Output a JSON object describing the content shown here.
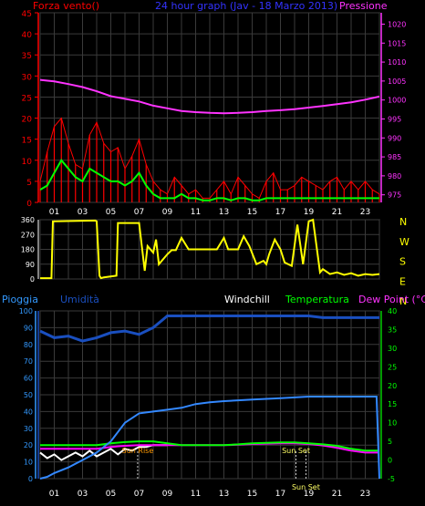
{
  "chart_data": [
    {
      "type": "line",
      "title": "24 hour graph (Jav - 18 Marzo 2013)",
      "left_label": "Forza vento()",
      "right_label": "Pressione",
      "x_ticks": [
        "01",
        "03",
        "05",
        "07",
        "09",
        "11",
        "13",
        "15",
        "17",
        "19",
        "21",
        "23"
      ],
      "x_range": [
        0,
        24
      ],
      "y_left": {
        "ticks": [
          0,
          5,
          10,
          15,
          20,
          25,
          30,
          35,
          40,
          45
        ],
        "range": [
          0,
          45
        ]
      },
      "y_right": {
        "ticks": [
          975,
          980,
          985,
          990,
          995,
          1000,
          1005,
          1010,
          1015,
          1020
        ],
        "range": [
          973,
          1023
        ]
      },
      "grid": true,
      "series": [
        {
          "axis": "right",
          "color": "#ff33ff",
          "x": [
            0,
            1,
            2,
            3,
            4,
            5,
            6,
            7,
            8,
            9,
            10,
            11,
            12,
            13,
            14,
            15,
            16,
            17,
            18,
            19,
            20,
            21,
            22,
            23,
            24
          ],
          "values": [
            1005.3,
            1004.9,
            1004.2,
            1003.4,
            1002.3,
            1001,
            1000.3,
            999.6,
            998.5,
            997.8,
            997.1,
            996.8,
            996.6,
            996.5,
            996.6,
            996.8,
            997.1,
            997.3,
            997.6,
            998,
            998.4,
            998.9,
            999.4,
            1000.1,
            1000.9
          ]
        },
        {
          "axis": "left",
          "color": "#ff0000",
          "x": [
            0,
            0.5,
            1,
            1.5,
            2,
            2.5,
            3,
            3.5,
            4,
            4.5,
            5,
            5.5,
            6,
            6.5,
            7,
            7.5,
            8,
            8.5,
            9,
            9.5,
            10,
            10.5,
            11,
            11.5,
            12,
            12.5,
            13,
            13.5,
            14,
            14.5,
            15,
            15.5,
            16,
            16.5,
            17,
            17.5,
            18,
            18.5,
            19,
            19.5,
            20,
            20.5,
            21,
            21.5,
            22,
            22.5,
            23,
            23.5,
            24
          ],
          "values": [
            5,
            12,
            18,
            20,
            14,
            9,
            8,
            16,
            19,
            14,
            12,
            13,
            8,
            11,
            15,
            9,
            5,
            3,
            2,
            6,
            4,
            2,
            3,
            1,
            1,
            3,
            5,
            2,
            6,
            4,
            2,
            1,
            5,
            7,
            3,
            3,
            4,
            6,
            5,
            4,
            3,
            5,
            6,
            3,
            5,
            3,
            5,
            3,
            2
          ]
        },
        {
          "axis": "left",
          "color": "#00ff00",
          "x": [
            0,
            0.5,
            1,
            1.5,
            2,
            2.5,
            3,
            3.5,
            4,
            4.5,
            5,
            5.5,
            6,
            6.5,
            7,
            7.5,
            8,
            8.5,
            9,
            9.5,
            10,
            10.5,
            11,
            11.5,
            12,
            12.5,
            13,
            13.5,
            14,
            14.5,
            15,
            15.5,
            16,
            16.5,
            17,
            17.5,
            18,
            18.5,
            19,
            19.5,
            20,
            20.5,
            21,
            21.5,
            22,
            22.5,
            23,
            23.5,
            24
          ],
          "values": [
            3,
            4,
            7,
            10,
            8,
            6,
            5,
            8,
            7,
            6,
            5,
            5,
            4,
            5,
            7,
            4,
            2,
            1,
            1,
            1,
            2,
            1,
            1,
            0.5,
            0.5,
            1,
            1,
            0.5,
            1,
            1,
            0.5,
            0.5,
            1,
            1,
            1,
            1,
            1,
            1,
            1,
            1,
            1,
            1,
            1,
            1,
            1,
            1,
            1,
            1,
            1
          ]
        }
      ]
    },
    {
      "type": "line",
      "y_left": {
        "ticks": [
          0,
          90,
          180,
          270,
          360
        ],
        "range": [
          0,
          360
        ]
      },
      "right_labels": [
        "N",
        "W",
        "S",
        "E",
        "N"
      ],
      "x_range": [
        0,
        24
      ],
      "grid": true,
      "series": [
        {
          "color": "#ffff00",
          "x": [
            0,
            0.8,
            0.9,
            3.9,
            4,
            4.2,
            4.3,
            4.5,
            5.4,
            5.5,
            6.9,
            7,
            7.4,
            7.6,
            8,
            8.2,
            8.4,
            9,
            9.3,
            9.6,
            10,
            10.5,
            11,
            11.4,
            12,
            12.5,
            13,
            13.3,
            13.8,
            14,
            14.4,
            14.8,
            15.3,
            15.8,
            16,
            16.2,
            16.6,
            17,
            17.3,
            17.8,
            18.2,
            18.6,
            19,
            19.3,
            19.8,
            20,
            20.5,
            21,
            21.5,
            22,
            22.5,
            23,
            23.5,
            24
          ],
          "values": [
            5,
            5,
            350,
            355,
            350,
            20,
            5,
            10,
            20,
            340,
            340,
            340,
            50,
            200,
            160,
            240,
            90,
            150,
            175,
            175,
            250,
            180,
            180,
            180,
            180,
            180,
            250,
            180,
            180,
            180,
            260,
            200,
            90,
            110,
            90,
            150,
            240,
            180,
            100,
            80,
            330,
            90,
            350,
            360,
            40,
            60,
            30,
            40,
            25,
            35,
            20,
            30,
            25,
            30
          ]
        }
      ]
    },
    {
      "type": "line",
      "labels": [
        "Pioggia",
        "Umidità",
        "Windchill",
        "Temperatura",
        "Dew Point (°C)"
      ],
      "x_ticks": [
        "01",
        "03",
        "05",
        "07",
        "09",
        "11",
        "13",
        "15",
        "17",
        "19",
        "21",
        "23"
      ],
      "x_range": [
        0,
        24
      ],
      "y_left": {
        "ticks": [
          0,
          10,
          20,
          30,
          40,
          50,
          60,
          70,
          80,
          90,
          100
        ],
        "range": [
          0,
          100
        ]
      },
      "y_right": {
        "ticks": [
          -5,
          0,
          5,
          10,
          15,
          20,
          25,
          30,
          35,
          40
        ],
        "range": [
          -5,
          40
        ]
      },
      "annotations": [
        {
          "text": "Sun Rise",
          "x": 6.9
        },
        {
          "text": "Sun Set",
          "x": 18.1
        },
        {
          "text": "Sun Set",
          "x": 18.8
        }
      ],
      "grid": true,
      "series": [
        {
          "name": "Pioggia",
          "axis": "right",
          "color": "#3388ff",
          "x": [
            0,
            0.5,
            1,
            2,
            3,
            4,
            5,
            6,
            7,
            8,
            9,
            10,
            11,
            12,
            13,
            14,
            15,
            16,
            17,
            18,
            19,
            20,
            21,
            22,
            23,
            23.8,
            24
          ],
          "values": [
            -5,
            -4.5,
            -3.5,
            -2,
            0,
            2,
            5,
            10,
            12.5,
            13,
            13.5,
            14,
            15,
            15.5,
            15.8,
            16,
            16.2,
            16.4,
            16.6,
            16.8,
            17,
            17,
            17,
            17,
            17,
            17,
            -5
          ]
        },
        {
          "name": "Umidità",
          "axis": "left",
          "color": "#1a4fbf",
          "x": [
            0,
            1,
            2,
            3,
            4,
            5,
            6,
            7,
            8,
            9,
            10,
            11,
            12,
            13,
            14,
            15,
            16,
            17,
            18,
            19,
            20,
            21,
            22,
            23,
            24
          ],
          "values": [
            88,
            84,
            85,
            82,
            84,
            87,
            88,
            86,
            90,
            97,
            97,
            97,
            97,
            97,
            97,
            97,
            97,
            97,
            97,
            97,
            96,
            96,
            96,
            96,
            96
          ]
        },
        {
          "name": "Temperatura",
          "axis": "right",
          "color": "#00ff00",
          "x": [
            0,
            1,
            2,
            3,
            4,
            5,
            6,
            7,
            8,
            9,
            10,
            11,
            12,
            13,
            14,
            15,
            16,
            17,
            18,
            19,
            20,
            21,
            22,
            23,
            24
          ],
          "values": [
            4,
            4,
            4,
            4,
            4,
            4.5,
            4.8,
            5,
            5,
            4.5,
            4,
            4,
            4,
            4,
            4.2,
            4.5,
            4.6,
            4.7,
            4.7,
            4.5,
            4.2,
            3.8,
            3,
            2.5,
            2.5
          ]
        },
        {
          "name": "Dew Point (°C)",
          "axis": "right",
          "color": "#ff00ff",
          "x": [
            0,
            1,
            2,
            3,
            4,
            5,
            6,
            7,
            8,
            9,
            10,
            11,
            12,
            13,
            14,
            15,
            16,
            17,
            18,
            19,
            20,
            21,
            22,
            23,
            24
          ],
          "values": [
            3,
            3,
            3,
            3,
            3,
            3.5,
            3.8,
            4,
            4,
            4,
            4,
            4,
            4,
            4,
            4.1,
            4.3,
            4.4,
            4.5,
            4.5,
            4.3,
            3.9,
            3.3,
            2.5,
            2,
            2
          ]
        },
        {
          "name": "Windchill",
          "axis": "right",
          "color": "#ffffff",
          "x": [
            0,
            0.5,
            1,
            1.5,
            2,
            2.5,
            3,
            3.5,
            4,
            4.5,
            5,
            5.5,
            6,
            6.5,
            7,
            7.5,
            8,
            8.5,
            9
          ],
          "values": [
            2,
            0.5,
            1.5,
            0,
            1,
            2,
            1,
            2.5,
            1,
            2,
            3,
            1.5,
            3,
            2.5,
            3.5,
            3.5,
            4,
            4,
            4
          ]
        }
      ]
    }
  ]
}
